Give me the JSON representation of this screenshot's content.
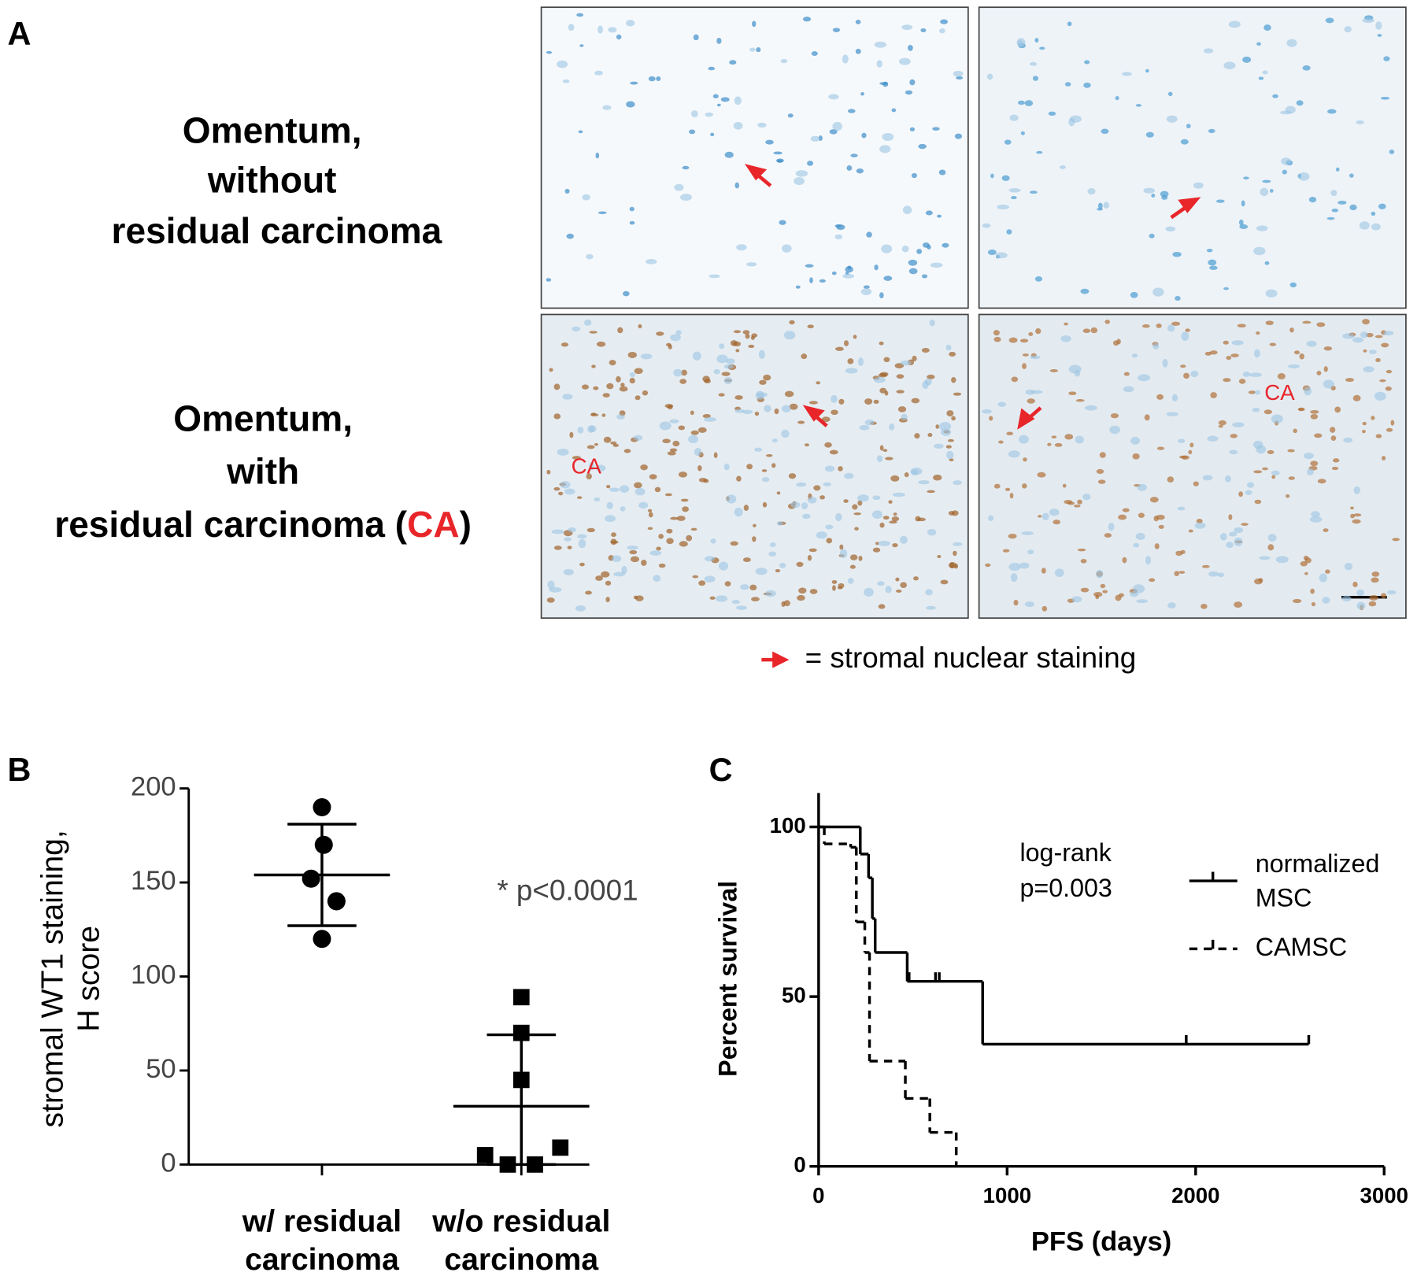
{
  "panel_a": {
    "label": "A",
    "rows": [
      {
        "lines": [
          "Omentum,",
          "without",
          "residual carcinoma"
        ]
      },
      {
        "lines": [
          "Omentum,",
          "with"
        ],
        "last_line": [
          "residual carcinoma (",
          "CA",
          ")"
        ]
      }
    ],
    "image_labels": [
      "CA",
      "CA"
    ],
    "legend": "= stromal nuclear staining"
  },
  "chart_data": [
    {
      "type": "dot",
      "panel_label": "B",
      "y_label": [
        "stromal WT1 staining,",
        "H score"
      ],
      "categories": [
        [
          "w/ residual",
          "carcinoma"
        ],
        [
          "w/o residual",
          "carcinoma"
        ]
      ],
      "markers": [
        "circle",
        "square"
      ],
      "points": [
        [
          190,
          170,
          152,
          140,
          120
        ],
        [
          89,
          70,
          45,
          5,
          0,
          0,
          9
        ]
      ],
      "means": [
        154,
        31
      ],
      "sd_ranges": [
        [
          127,
          181
        ],
        [
          0,
          69
        ]
      ],
      "annotation": "* p<0.0001",
      "color": "#000000",
      "ylim": [
        0,
        200
      ],
      "yticks": [
        0,
        50,
        100,
        150,
        200
      ]
    },
    {
      "type": "survival",
      "panel_label": "C",
      "x_label": "PFS (days)",
      "y_label": "Percent survival",
      "annotation": [
        "log-rank",
        "p=0.003"
      ],
      "series": [
        {
          "name": [
            "normalized",
            "MSC"
          ],
          "color": "#000000",
          "dashed": false,
          "x": [
            0,
            221,
            265,
            285,
            300,
            470,
            870,
            2600
          ],
          "values": [
            100,
            92,
            85,
            73,
            63,
            54.5,
            36,
            36
          ],
          "censored_x": [
            480,
            620,
            640,
            1950,
            2600
          ],
          "censored_values": [
            54.5,
            54.5,
            54.5,
            36,
            36
          ]
        },
        {
          "name": [
            "CAMSC"
          ],
          "color": "#000000",
          "dashed": true,
          "x": [
            0,
            30,
            170,
            200,
            245,
            270,
            460,
            590,
            730
          ],
          "values": [
            100,
            95,
            94,
            72,
            63,
            31,
            20,
            10,
            0
          ],
          "censored_x": [],
          "censored_values": []
        }
      ],
      "xlim": [
        0,
        3000
      ],
      "xticks": [
        0,
        1000,
        2000,
        3000
      ],
      "ylim": [
        0,
        110
      ],
      "yticks": [
        0,
        50,
        100
      ]
    }
  ]
}
